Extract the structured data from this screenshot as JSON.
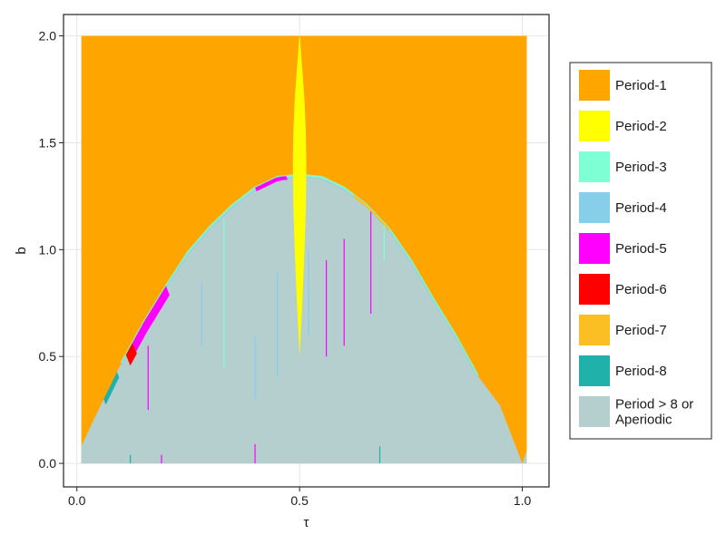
{
  "chart_data": {
    "type": "heatmap",
    "title": "",
    "xlabel": "τ",
    "ylabel": "b",
    "xlim": [
      -0.03,
      1.06
    ],
    "ylim": [
      -0.11,
      2.1
    ],
    "grid": true,
    "x_ticks": [
      {
        "value": 0.0,
        "label": "0.0"
      },
      {
        "value": 0.5,
        "label": "0.5"
      },
      {
        "value": 1.0,
        "label": "1.0"
      }
    ],
    "y_ticks": [
      {
        "value": 0.0,
        "label": "0.0"
      },
      {
        "value": 0.5,
        "label": "0.5"
      },
      {
        "value": 1.0,
        "label": "1.0"
      },
      {
        "value": 1.5,
        "label": "1.5"
      },
      {
        "value": 2.0,
        "label": "2.0"
      }
    ],
    "x_range": [
      0.01,
      1.01
    ],
    "y_range": [
      0.0,
      2.0
    ],
    "legend_position": "right",
    "series": [
      {
        "name": "Period-1",
        "color": "#FFA500"
      },
      {
        "name": "Period-2",
        "color": "#FFFF00"
      },
      {
        "name": "Period-3",
        "color": "#7FFFD4"
      },
      {
        "name": "Period-4",
        "color": "#87CEEB"
      },
      {
        "name": "Period-5",
        "color": "#FF00FF"
      },
      {
        "name": "Period-6",
        "color": "#FF0000"
      },
      {
        "name": "Period-7",
        "color": "#FBBF24"
      },
      {
        "name": "Period-8",
        "color": "#20B2AA"
      },
      {
        "name": "Period > 8 or Aperiodic",
        "color": "#B5CFCF"
      }
    ],
    "regions": {
      "period1_region": {
        "x_range": [
          0.01,
          1.01
        ],
        "y_range": [
          0.0,
          2.0
        ]
      },
      "aperiodic_boundary": {
        "tau": [
          0.01,
          0.03,
          0.06,
          0.1,
          0.15,
          0.2,
          0.25,
          0.3,
          0.35,
          0.4,
          0.45,
          0.5,
          0.55,
          0.6,
          0.65,
          0.7,
          0.75,
          0.8,
          0.85,
          0.9,
          0.95,
          1.0,
          1.01
        ],
        "b": [
          0.08,
          0.17,
          0.3,
          0.47,
          0.66,
          0.83,
          0.99,
          1.11,
          1.21,
          1.29,
          1.34,
          1.35,
          1.34,
          1.29,
          1.21,
          1.1,
          0.95,
          0.77,
          0.6,
          0.41,
          0.27,
          0.0,
          0.06
        ]
      },
      "period2_tongue": {
        "tau": [
          0.5,
          0.506,
          0.511,
          0.514,
          0.515,
          0.514,
          0.511,
          0.507,
          0.504,
          0.502,
          0.501,
          0.5,
          0.499,
          0.498,
          0.496,
          0.493,
          0.489,
          0.486,
          0.485,
          0.486,
          0.489,
          0.494,
          0.5
        ],
        "b": [
          0.5,
          0.75,
          1.0,
          1.2,
          1.4,
          1.55,
          1.7,
          1.82,
          1.9,
          1.96,
          1.99,
          2.0,
          1.99,
          1.96,
          1.9,
          1.82,
          1.7,
          1.55,
          1.4,
          1.2,
          1.0,
          0.75,
          0.5
        ]
      }
    }
  }
}
